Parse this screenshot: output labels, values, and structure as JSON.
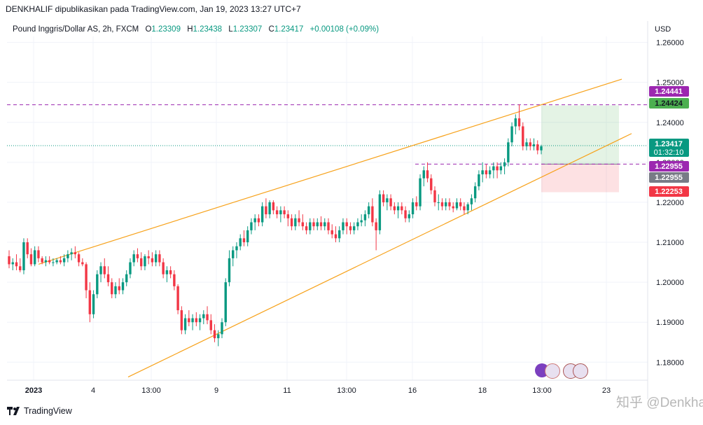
{
  "header": {
    "attribution": "DENKHALIF dipublikasikan pada TradingView.com, Jan 19, 2023 13:27 UTC+7"
  },
  "legend": {
    "symbol": "Pound Inggris/Dollar AS, 2h, FXCM",
    "open_label": "O",
    "open": "1.23309",
    "high_label": "H",
    "high": "1.23438",
    "low_label": "L",
    "low": "1.23307",
    "close_label": "C",
    "close": "1.23417",
    "change": "+0.00108 (+0.09%)",
    "up_color": "#089981",
    "down_color": "#f23645"
  },
  "currency": "USD",
  "footer": {
    "brand": "TradingView",
    "watermark": "知乎 @Denkhalif"
  },
  "chart_data": {
    "type": "candlestick",
    "y_axis_ticks": [
      "1.26000",
      "1.25000",
      "1.24000",
      "1.23000",
      "1.22000",
      "1.21000",
      "1.20000",
      "1.19000",
      "1.18000"
    ],
    "x_axis_ticks": [
      "2023",
      "4",
      "13:00",
      "9",
      "11",
      "13:00",
      "16",
      "18",
      "13:00",
      "23"
    ],
    "ylim": [
      1.1755,
      1.2615
    ],
    "x_range": [
      0,
      171
    ],
    "price_labels": [
      {
        "value": "1.24441",
        "color": "#9c27b0",
        "text_color": "#ffffff"
      },
      {
        "value": "1.24424",
        "color": "#4caf50",
        "text_color": "#131722"
      },
      {
        "value": "1.23417",
        "sub": "01:32:10",
        "color": "#089981",
        "text_color": "#ffffff"
      },
      {
        "value": "1.22955",
        "color": "#9c27b0",
        "text_color": "#ffffff"
      },
      {
        "value": "1.22955",
        "color": "#787b86",
        "text_color": "#ffffff"
      },
      {
        "value": "1.22253",
        "color": "#f23645",
        "text_color": "#ffffff"
      }
    ],
    "channel": {
      "upper": [
        [
          8,
          1.2045
        ],
        [
          160,
          1.2508
        ]
      ],
      "lower": [
        [
          37,
          1.1765
        ],
        [
          163,
          1.2375
        ]
      ]
    },
    "horizontal_lines": [
      {
        "y": 1.24441,
        "color": "#9c27b0",
        "style": "dashed",
        "x_from": 0
      },
      {
        "y": 1.22955,
        "color": "#9c27b0",
        "style": "dashed",
        "x_from": 119
      },
      {
        "y": 1.23417,
        "color": "#089981",
        "style": "dotted",
        "x_from": 0
      }
    ],
    "position_box": {
      "x_start": 155,
      "x_end": 177,
      "entry": 1.22955,
      "target": 1.24424,
      "stop": 1.22253
    },
    "candles": [
      [
        1.2065,
        1.208,
        1.2035,
        1.2045
      ],
      [
        1.2045,
        1.206,
        1.203,
        1.205
      ],
      [
        1.205,
        1.207,
        1.203,
        1.204
      ],
      [
        1.204,
        1.206,
        1.2025,
        1.203
      ],
      [
        1.203,
        1.211,
        1.202,
        1.21
      ],
      [
        1.21,
        1.211,
        1.206,
        1.207
      ],
      [
        1.207,
        1.2085,
        1.204,
        1.2045
      ],
      [
        1.2045,
        1.209,
        1.204,
        1.208
      ],
      [
        1.208,
        1.209,
        1.205,
        1.206
      ],
      [
        1.206,
        1.2065,
        1.2045,
        1.205
      ],
      [
        1.205,
        1.2065,
        1.204,
        1.2055
      ],
      [
        1.2055,
        1.2065,
        1.2045,
        1.205
      ],
      [
        1.205,
        1.206,
        1.204,
        1.205
      ],
      [
        1.205,
        1.206,
        1.2045,
        1.2055
      ],
      [
        1.2055,
        1.2065,
        1.2045,
        1.205
      ],
      [
        1.205,
        1.207,
        1.204,
        1.206
      ],
      [
        1.206,
        1.208,
        1.205,
        1.207
      ],
      [
        1.207,
        1.2085,
        1.2055,
        1.2075
      ],
      [
        1.2075,
        1.209,
        1.206,
        1.207
      ],
      [
        1.207,
        1.2075,
        1.204,
        1.205
      ],
      [
        1.205,
        1.206,
        1.204,
        1.2045
      ],
      [
        1.2045,
        1.205,
        1.196,
        1.198
      ],
      [
        1.198,
        1.2,
        1.19,
        1.192
      ],
      [
        1.192,
        1.198,
        1.191,
        1.197
      ],
      [
        1.197,
        1.203,
        1.196,
        1.202
      ],
      [
        1.202,
        1.205,
        1.2,
        1.204
      ],
      [
        1.204,
        1.206,
        1.201,
        1.202
      ],
      [
        1.202,
        1.204,
        1.199,
        1.2
      ],
      [
        1.2,
        1.201,
        1.196,
        1.197
      ],
      [
        1.197,
        1.2,
        1.196,
        1.199
      ],
      [
        1.199,
        1.201,
        1.197,
        1.198
      ],
      [
        1.198,
        1.201,
        1.197,
        1.2
      ],
      [
        1.2,
        1.203,
        1.199,
        1.202
      ],
      [
        1.202,
        1.206,
        1.201,
        1.205
      ],
      [
        1.205,
        1.208,
        1.204,
        1.207
      ],
      [
        1.207,
        1.2085,
        1.205,
        1.206
      ],
      [
        1.206,
        1.2075,
        1.203,
        1.204
      ],
      [
        1.204,
        1.207,
        1.203,
        1.2065
      ],
      [
        1.2065,
        1.208,
        1.2045,
        1.206
      ],
      [
        1.206,
        1.2075,
        1.204,
        1.205
      ],
      [
        1.205,
        1.208,
        1.204,
        1.207
      ],
      [
        1.207,
        1.208,
        1.204,
        1.205
      ],
      [
        1.205,
        1.206,
        1.201,
        1.202
      ],
      [
        1.202,
        1.204,
        1.2,
        1.203
      ],
      [
        1.203,
        1.204,
        1.201,
        1.202
      ],
      [
        1.202,
        1.203,
        1.198,
        1.199
      ],
      [
        1.199,
        1.1995,
        1.192,
        1.193
      ],
      [
        1.193,
        1.194,
        1.187,
        1.188
      ],
      [
        1.188,
        1.192,
        1.187,
        1.191
      ],
      [
        1.191,
        1.193,
        1.189,
        1.19
      ],
      [
        1.19,
        1.192,
        1.188,
        1.191
      ],
      [
        1.191,
        1.1925,
        1.189,
        1.19
      ],
      [
        1.19,
        1.192,
        1.188,
        1.191
      ],
      [
        1.191,
        1.193,
        1.1895,
        1.192
      ],
      [
        1.192,
        1.194,
        1.1895,
        1.1905
      ],
      [
        1.1905,
        1.192,
        1.187,
        1.188
      ],
      [
        1.188,
        1.1895,
        1.185,
        1.186
      ],
      [
        1.186,
        1.188,
        1.184,
        1.187
      ],
      [
        1.187,
        1.191,
        1.186,
        1.19
      ],
      [
        1.19,
        1.201,
        1.189,
        1.2
      ],
      [
        1.2,
        1.208,
        1.199,
        1.206
      ],
      [
        1.206,
        1.209,
        1.204,
        1.208
      ],
      [
        1.208,
        1.21,
        1.206,
        1.209
      ],
      [
        1.209,
        1.212,
        1.208,
        1.211
      ],
      [
        1.211,
        1.213,
        1.209,
        1.21
      ],
      [
        1.21,
        1.214,
        1.209,
        1.213
      ],
      [
        1.213,
        1.216,
        1.212,
        1.215
      ],
      [
        1.215,
        1.217,
        1.213,
        1.216
      ],
      [
        1.216,
        1.217,
        1.214,
        1.215
      ],
      [
        1.215,
        1.22,
        1.214,
        1.219
      ],
      [
        1.219,
        1.221,
        1.216,
        1.217
      ],
      [
        1.217,
        1.2205,
        1.216,
        1.22
      ],
      [
        1.22,
        1.2205,
        1.217,
        1.218
      ],
      [
        1.218,
        1.219,
        1.216,
        1.217
      ],
      [
        1.217,
        1.219,
        1.215,
        1.218
      ],
      [
        1.218,
        1.219,
        1.216,
        1.217
      ],
      [
        1.217,
        1.218,
        1.214,
        1.216
      ],
      [
        1.216,
        1.217,
        1.213,
        1.214
      ],
      [
        1.214,
        1.217,
        1.213,
        1.216
      ],
      [
        1.216,
        1.218,
        1.214,
        1.215
      ],
      [
        1.215,
        1.217,
        1.213,
        1.214
      ],
      [
        1.214,
        1.215,
        1.212,
        1.213
      ],
      [
        1.213,
        1.216,
        1.212,
        1.215
      ],
      [
        1.215,
        1.216,
        1.213,
        1.214
      ],
      [
        1.214,
        1.216,
        1.213,
        1.215
      ],
      [
        1.215,
        1.2165,
        1.213,
        1.214
      ],
      [
        1.214,
        1.216,
        1.213,
        1.215
      ],
      [
        1.215,
        1.216,
        1.212,
        1.213
      ],
      [
        1.213,
        1.2145,
        1.211,
        1.212
      ],
      [
        1.212,
        1.214,
        1.21,
        1.211
      ],
      [
        1.211,
        1.214,
        1.21,
        1.213
      ],
      [
        1.213,
        1.216,
        1.212,
        1.215
      ],
      [
        1.215,
        1.216,
        1.212,
        1.214
      ],
      [
        1.214,
        1.215,
        1.212,
        1.213
      ],
      [
        1.213,
        1.215,
        1.212,
        1.214
      ],
      [
        1.214,
        1.216,
        1.213,
        1.215
      ],
      [
        1.215,
        1.217,
        1.214,
        1.2155
      ],
      [
        1.2155,
        1.218,
        1.214,
        1.217
      ],
      [
        1.217,
        1.22,
        1.216,
        1.219
      ],
      [
        1.219,
        1.221,
        1.214,
        1.215
      ],
      [
        1.215,
        1.216,
        1.208,
        1.213
      ],
      [
        1.213,
        1.223,
        1.212,
        1.222
      ],
      [
        1.222,
        1.223,
        1.219,
        1.22
      ],
      [
        1.22,
        1.222,
        1.218,
        1.221
      ],
      [
        1.221,
        1.222,
        1.218,
        1.219
      ],
      [
        1.219,
        1.22,
        1.217,
        1.218
      ],
      [
        1.218,
        1.22,
        1.216,
        1.219
      ],
      [
        1.219,
        1.22,
        1.217,
        1.218
      ],
      [
        1.218,
        1.219,
        1.215,
        1.216
      ],
      [
        1.216,
        1.218,
        1.215,
        1.217
      ],
      [
        1.217,
        1.221,
        1.216,
        1.22
      ],
      [
        1.22,
        1.2215,
        1.218,
        1.219
      ],
      [
        1.219,
        1.227,
        1.218,
        1.226
      ],
      [
        1.226,
        1.229,
        1.224,
        1.228
      ],
      [
        1.228,
        1.23,
        1.225,
        1.226
      ],
      [
        1.226,
        1.227,
        1.222,
        1.223
      ],
      [
        1.223,
        1.224,
        1.219,
        1.22
      ],
      [
        1.22,
        1.222,
        1.218,
        1.22
      ],
      [
        1.22,
        1.221,
        1.218,
        1.219
      ],
      [
        1.219,
        1.221,
        1.218,
        1.22
      ],
      [
        1.22,
        1.221,
        1.218,
        1.219
      ],
      [
        1.219,
        1.22,
        1.2175,
        1.2185
      ],
      [
        1.2185,
        1.221,
        1.218,
        1.22
      ],
      [
        1.22,
        1.221,
        1.218,
        1.219
      ],
      [
        1.219,
        1.22,
        1.217,
        1.218
      ],
      [
        1.218,
        1.22,
        1.217,
        1.2195
      ],
      [
        1.2195,
        1.222,
        1.218,
        1.221
      ],
      [
        1.221,
        1.225,
        1.22,
        1.224
      ],
      [
        1.224,
        1.228,
        1.223,
        1.227
      ],
      [
        1.227,
        1.23,
        1.225,
        1.228
      ],
      [
        1.228,
        1.2295,
        1.226,
        1.227
      ],
      [
        1.227,
        1.229,
        1.226,
        1.228
      ],
      [
        1.228,
        1.23,
        1.226,
        1.229
      ],
      [
        1.229,
        1.23,
        1.226,
        1.228
      ],
      [
        1.228,
        1.23,
        1.227,
        1.229
      ],
      [
        1.229,
        1.231,
        1.227,
        1.23
      ],
      [
        1.23,
        1.236,
        1.229,
        1.235
      ],
      [
        1.235,
        1.24,
        1.234,
        1.239
      ],
      [
        1.239,
        1.242,
        1.237,
        1.241
      ],
      [
        1.241,
        1.2445,
        1.238,
        1.239
      ],
      [
        1.239,
        1.24,
        1.233,
        1.234
      ],
      [
        1.234,
        1.236,
        1.233,
        1.235
      ],
      [
        1.235,
        1.236,
        1.233,
        1.234
      ],
      [
        1.234,
        1.236,
        1.233,
        1.2345
      ],
      [
        1.2345,
        1.2355,
        1.232,
        1.233
      ],
      [
        1.233,
        1.2344,
        1.232,
        1.234
      ]
    ],
    "candle_x_start": 2,
    "candle_step": 0.9
  }
}
